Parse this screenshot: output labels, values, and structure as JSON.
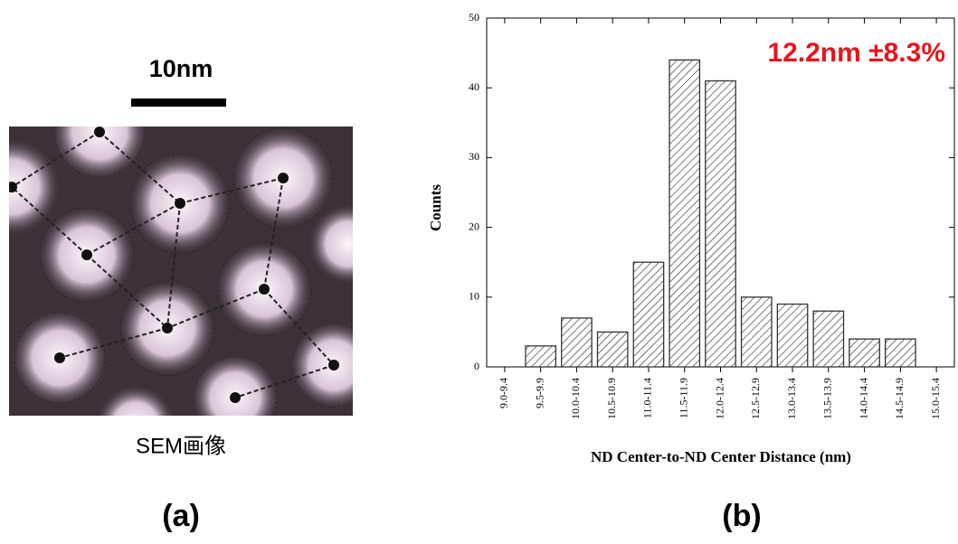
{
  "image_panel": {
    "scale_label": "10nm",
    "caption": "SEM画像",
    "panel_label": "(a)"
  },
  "chart_panel_label": "(b)",
  "chart_data": {
    "type": "bar",
    "annotation": "12.2nm ±8.3%",
    "x_label": "ND Center-to-ND Center Distance (nm)",
    "y_label": "Counts",
    "categories": [
      "9.0-9.4",
      "9.5-9.9",
      "10.0-10.4",
      "10.5-10.9",
      "11.0-11.4",
      "11.5-11.9",
      "12.0-12.4",
      "12.5-12.9",
      "13.0-13.4",
      "13.5-13.9",
      "14.0-14.4",
      "14.5-14.9",
      "15.0-15.4"
    ],
    "values": [
      0,
      3,
      7,
      5,
      15,
      44,
      41,
      10,
      9,
      8,
      4,
      4,
      0
    ],
    "color": "#333333",
    "ylim": [
      0,
      50
    ],
    "yticks": [
      0,
      10,
      20,
      30,
      40,
      50
    ],
    "grid": false
  }
}
